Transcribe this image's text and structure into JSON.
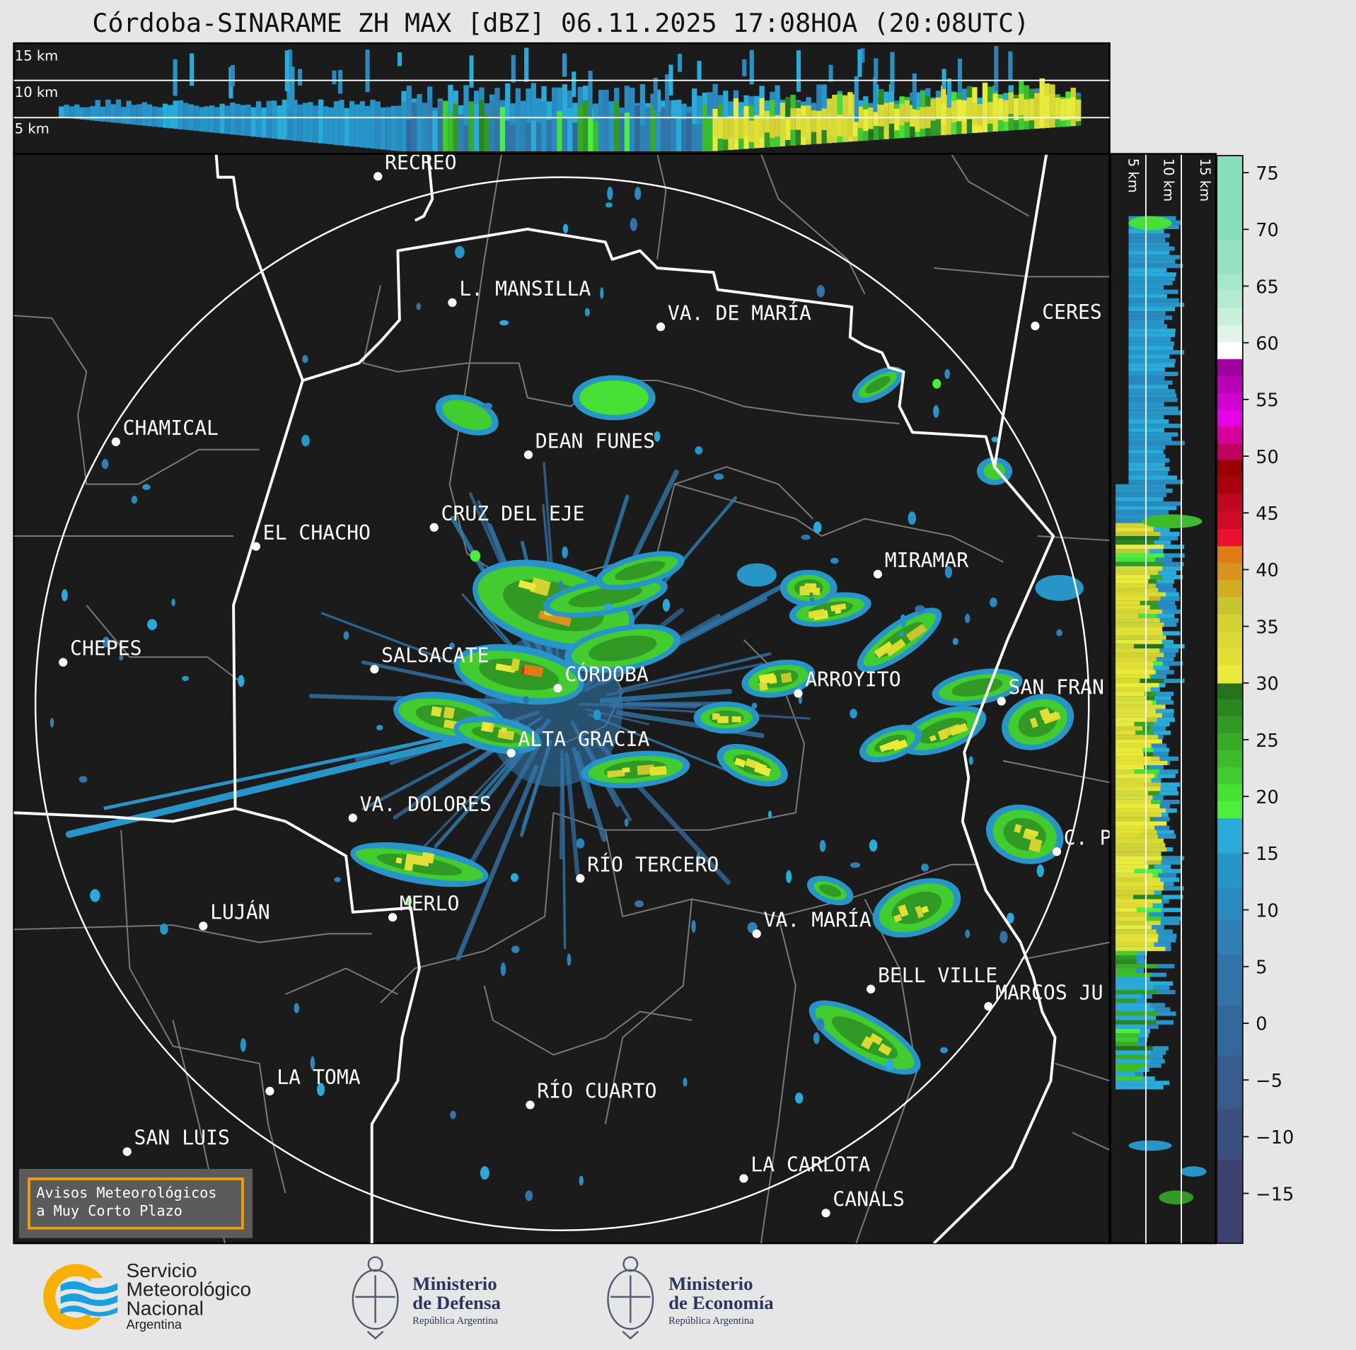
{
  "header": {
    "title": "Córdoba-SINARAME ZH MAX [dBZ] 06.11.2025 17:08HOA (20:08UTC)"
  },
  "top_section": {
    "height_labels": [
      "15 km",
      "10 km",
      "5 km"
    ]
  },
  "side_section": {
    "height_labels": [
      "5 km",
      "10 km",
      "15 km"
    ]
  },
  "map": {
    "cities": [
      {
        "name": "RECREO"
      },
      {
        "name": "L. MANSILLA"
      },
      {
        "name": "VA. DE MARÍA"
      },
      {
        "name": "CERES"
      },
      {
        "name": "CHAMICAL"
      },
      {
        "name": "DEAN FUNES"
      },
      {
        "name": "CRUZ DEL EJE"
      },
      {
        "name": "EL CHACHO"
      },
      {
        "name": "MIRAMAR"
      },
      {
        "name": "CHEPES"
      },
      {
        "name": "SALSACATE"
      },
      {
        "name": "CÓRDOBA"
      },
      {
        "name": "ARROYITO"
      },
      {
        "name": "SAN FRAN"
      },
      {
        "name": "ALTA GRACIA"
      },
      {
        "name": "VA. DOLORES"
      },
      {
        "name": "C. P"
      },
      {
        "name": "RÍO TERCERO"
      },
      {
        "name": "LUJÁN"
      },
      {
        "name": "MERLO"
      },
      {
        "name": "VA. MARÍA"
      },
      {
        "name": "BELL VILLE"
      },
      {
        "name": "MARCOS JU"
      },
      {
        "name": "LA TOMA"
      },
      {
        "name": "RÍO CUARTO"
      },
      {
        "name": "SAN LUIS"
      },
      {
        "name": "LA CARLOTA"
      },
      {
        "name": "CANALS"
      }
    ],
    "avisos_box": {
      "line1": "Avisos Meteorológicos",
      "line2": "a Muy Corto Plazo"
    },
    "accent_color": "#f5a000"
  },
  "colorbar": {
    "unit": "dBZ",
    "range": [
      -19.4,
      76.5
    ],
    "ticks": [
      75,
      70,
      65,
      60,
      55,
      50,
      45,
      40,
      35,
      30,
      25,
      20,
      15,
      10,
      5,
      0,
      -5,
      -10,
      -15
    ],
    "tick_labels": [
      "75",
      "70",
      "65",
      "60",
      "55",
      "50",
      "45",
      "40",
      "35",
      "30",
      "25",
      "20",
      "15",
      "10",
      "5",
      "0",
      "−5",
      "−10",
      "−15"
    ],
    "bands": [
      [
        -19.4,
        -12,
        "#3c416f"
      ],
      [
        -12,
        -7.5,
        "#3a5080"
      ],
      [
        -7.5,
        -2.8,
        "#385c8e"
      ],
      [
        -2.8,
        1.6,
        "#35689a"
      ],
      [
        1.6,
        6.1,
        "#3274a8"
      ],
      [
        6.1,
        9.1,
        "#2e80b5"
      ],
      [
        9.1,
        12,
        "#2a8abf"
      ],
      [
        12,
        15,
        "#2895c8"
      ],
      [
        15,
        18.1,
        "#2aaad8"
      ],
      [
        18.1,
        19.6,
        "#4cf03c"
      ],
      [
        19.6,
        21.1,
        "#47e035"
      ],
      [
        21.1,
        22.6,
        "#42cc30"
      ],
      [
        22.6,
        24.1,
        "#3dbb2c"
      ],
      [
        24.1,
        25.6,
        "#38aa28"
      ],
      [
        25.6,
        27.1,
        "#319a24"
      ],
      [
        27.1,
        28.6,
        "#2b8620"
      ],
      [
        28.6,
        30,
        "#25731c"
      ],
      [
        30,
        31.6,
        "#eaea3a"
      ],
      [
        31.6,
        33.1,
        "#e2e036"
      ],
      [
        33.1,
        34.6,
        "#d9da34"
      ],
      [
        34.6,
        36.1,
        "#d2d232"
      ],
      [
        36.1,
        37.6,
        "#c8c62e"
      ],
      [
        37.6,
        39.1,
        "#cfae22"
      ],
      [
        39.1,
        40.6,
        "#d8941c"
      ],
      [
        40.6,
        42.1,
        "#e07c18"
      ],
      [
        42.1,
        43.6,
        "#ee1030"
      ],
      [
        43.6,
        45.2,
        "#d00a28"
      ],
      [
        45.2,
        46.7,
        "#c00620"
      ],
      [
        46.7,
        48.2,
        "#aa0010"
      ],
      [
        48.2,
        49.7,
        "#990000"
      ],
      [
        49.7,
        51.1,
        "#c0005c"
      ],
      [
        51.1,
        52.7,
        "#d6009a"
      ],
      [
        52.7,
        54.1,
        "#e800e8"
      ],
      [
        54.1,
        55.6,
        "#d000d0"
      ],
      [
        55.6,
        57.1,
        "#b800b8"
      ],
      [
        57.1,
        58.6,
        "#a000a0"
      ],
      [
        58.6,
        60.1,
        "#ffffff"
      ],
      [
        60.1,
        61.6,
        "#e0f4ec"
      ],
      [
        61.6,
        63.1,
        "#c8eedc"
      ],
      [
        63.1,
        64.6,
        "#b4e9d4"
      ],
      [
        64.6,
        66.1,
        "#a6e6cc"
      ],
      [
        66.1,
        69.1,
        "#96e0c4"
      ],
      [
        69.1,
        76.5,
        "#88ddbb"
      ]
    ]
  },
  "footer": {
    "smn": {
      "line1": "Servicio",
      "line2": "Meteorológico",
      "line3": "Nacional",
      "line4": "Argentina"
    },
    "defensa": {
      "line1": "Ministerio",
      "line2": "de Defensa",
      "line3": "República Argentina"
    },
    "economia": {
      "line1": "Ministerio",
      "line2": "de Economía",
      "line3": "República Argentina"
    }
  }
}
